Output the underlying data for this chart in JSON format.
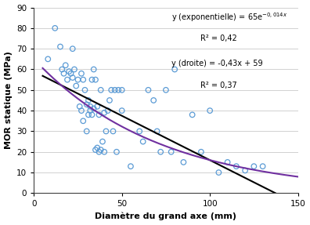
{
  "scatter_x": [
    8,
    12,
    15,
    16,
    17,
    18,
    19,
    20,
    21,
    22,
    22,
    23,
    24,
    25,
    26,
    27,
    27,
    28,
    28,
    29,
    30,
    30,
    31,
    31,
    32,
    32,
    33,
    33,
    34,
    34,
    35,
    35,
    36,
    36,
    37,
    37,
    38,
    38,
    39,
    40,
    40,
    41,
    42,
    43,
    44,
    45,
    46,
    47,
    48,
    50,
    50,
    55,
    60,
    62,
    65,
    68,
    70,
    72,
    75,
    78,
    80,
    85,
    90,
    95,
    100,
    105,
    110,
    115,
    120,
    125,
    130
  ],
  "scatter_y": [
    65,
    80,
    71,
    60,
    58,
    62,
    55,
    59,
    58,
    56,
    70,
    60,
    52,
    55,
    42,
    40,
    58,
    35,
    55,
    50,
    30,
    43,
    38,
    45,
    42,
    40,
    38,
    55,
    41,
    60,
    21,
    55,
    22,
    42,
    38,
    20,
    50,
    21,
    25,
    39,
    20,
    30,
    40,
    45,
    50,
    30,
    50,
    20,
    50,
    40,
    50,
    13,
    30,
    25,
    50,
    45,
    30,
    20,
    50,
    20,
    60,
    15,
    38,
    20,
    40,
    10,
    15,
    13,
    11,
    13,
    13
  ],
  "xlim": [
    0,
    150
  ],
  "ylim": [
    0,
    90
  ],
  "xlabel": "Diamètre du grand axe (mm)",
  "ylabel": "MOR statique (MPa)",
  "xticks": [
    0,
    50,
    100,
    150
  ],
  "yticks": [
    0,
    10,
    20,
    30,
    40,
    50,
    60,
    70,
    80,
    90
  ],
  "linear_a": -0.43,
  "linear_b": 59,
  "exp_a": 65,
  "exp_b": -0.014,
  "linear_color": "#000000",
  "exp_color": "#7030a0",
  "scatter_facecolor": "none",
  "scatter_edgecolor": "#5b9bd5",
  "background_color": "#ffffff",
  "grid_color": "#bfbfbf",
  "figsize": [
    3.96,
    2.87
  ],
  "dpi": 100
}
